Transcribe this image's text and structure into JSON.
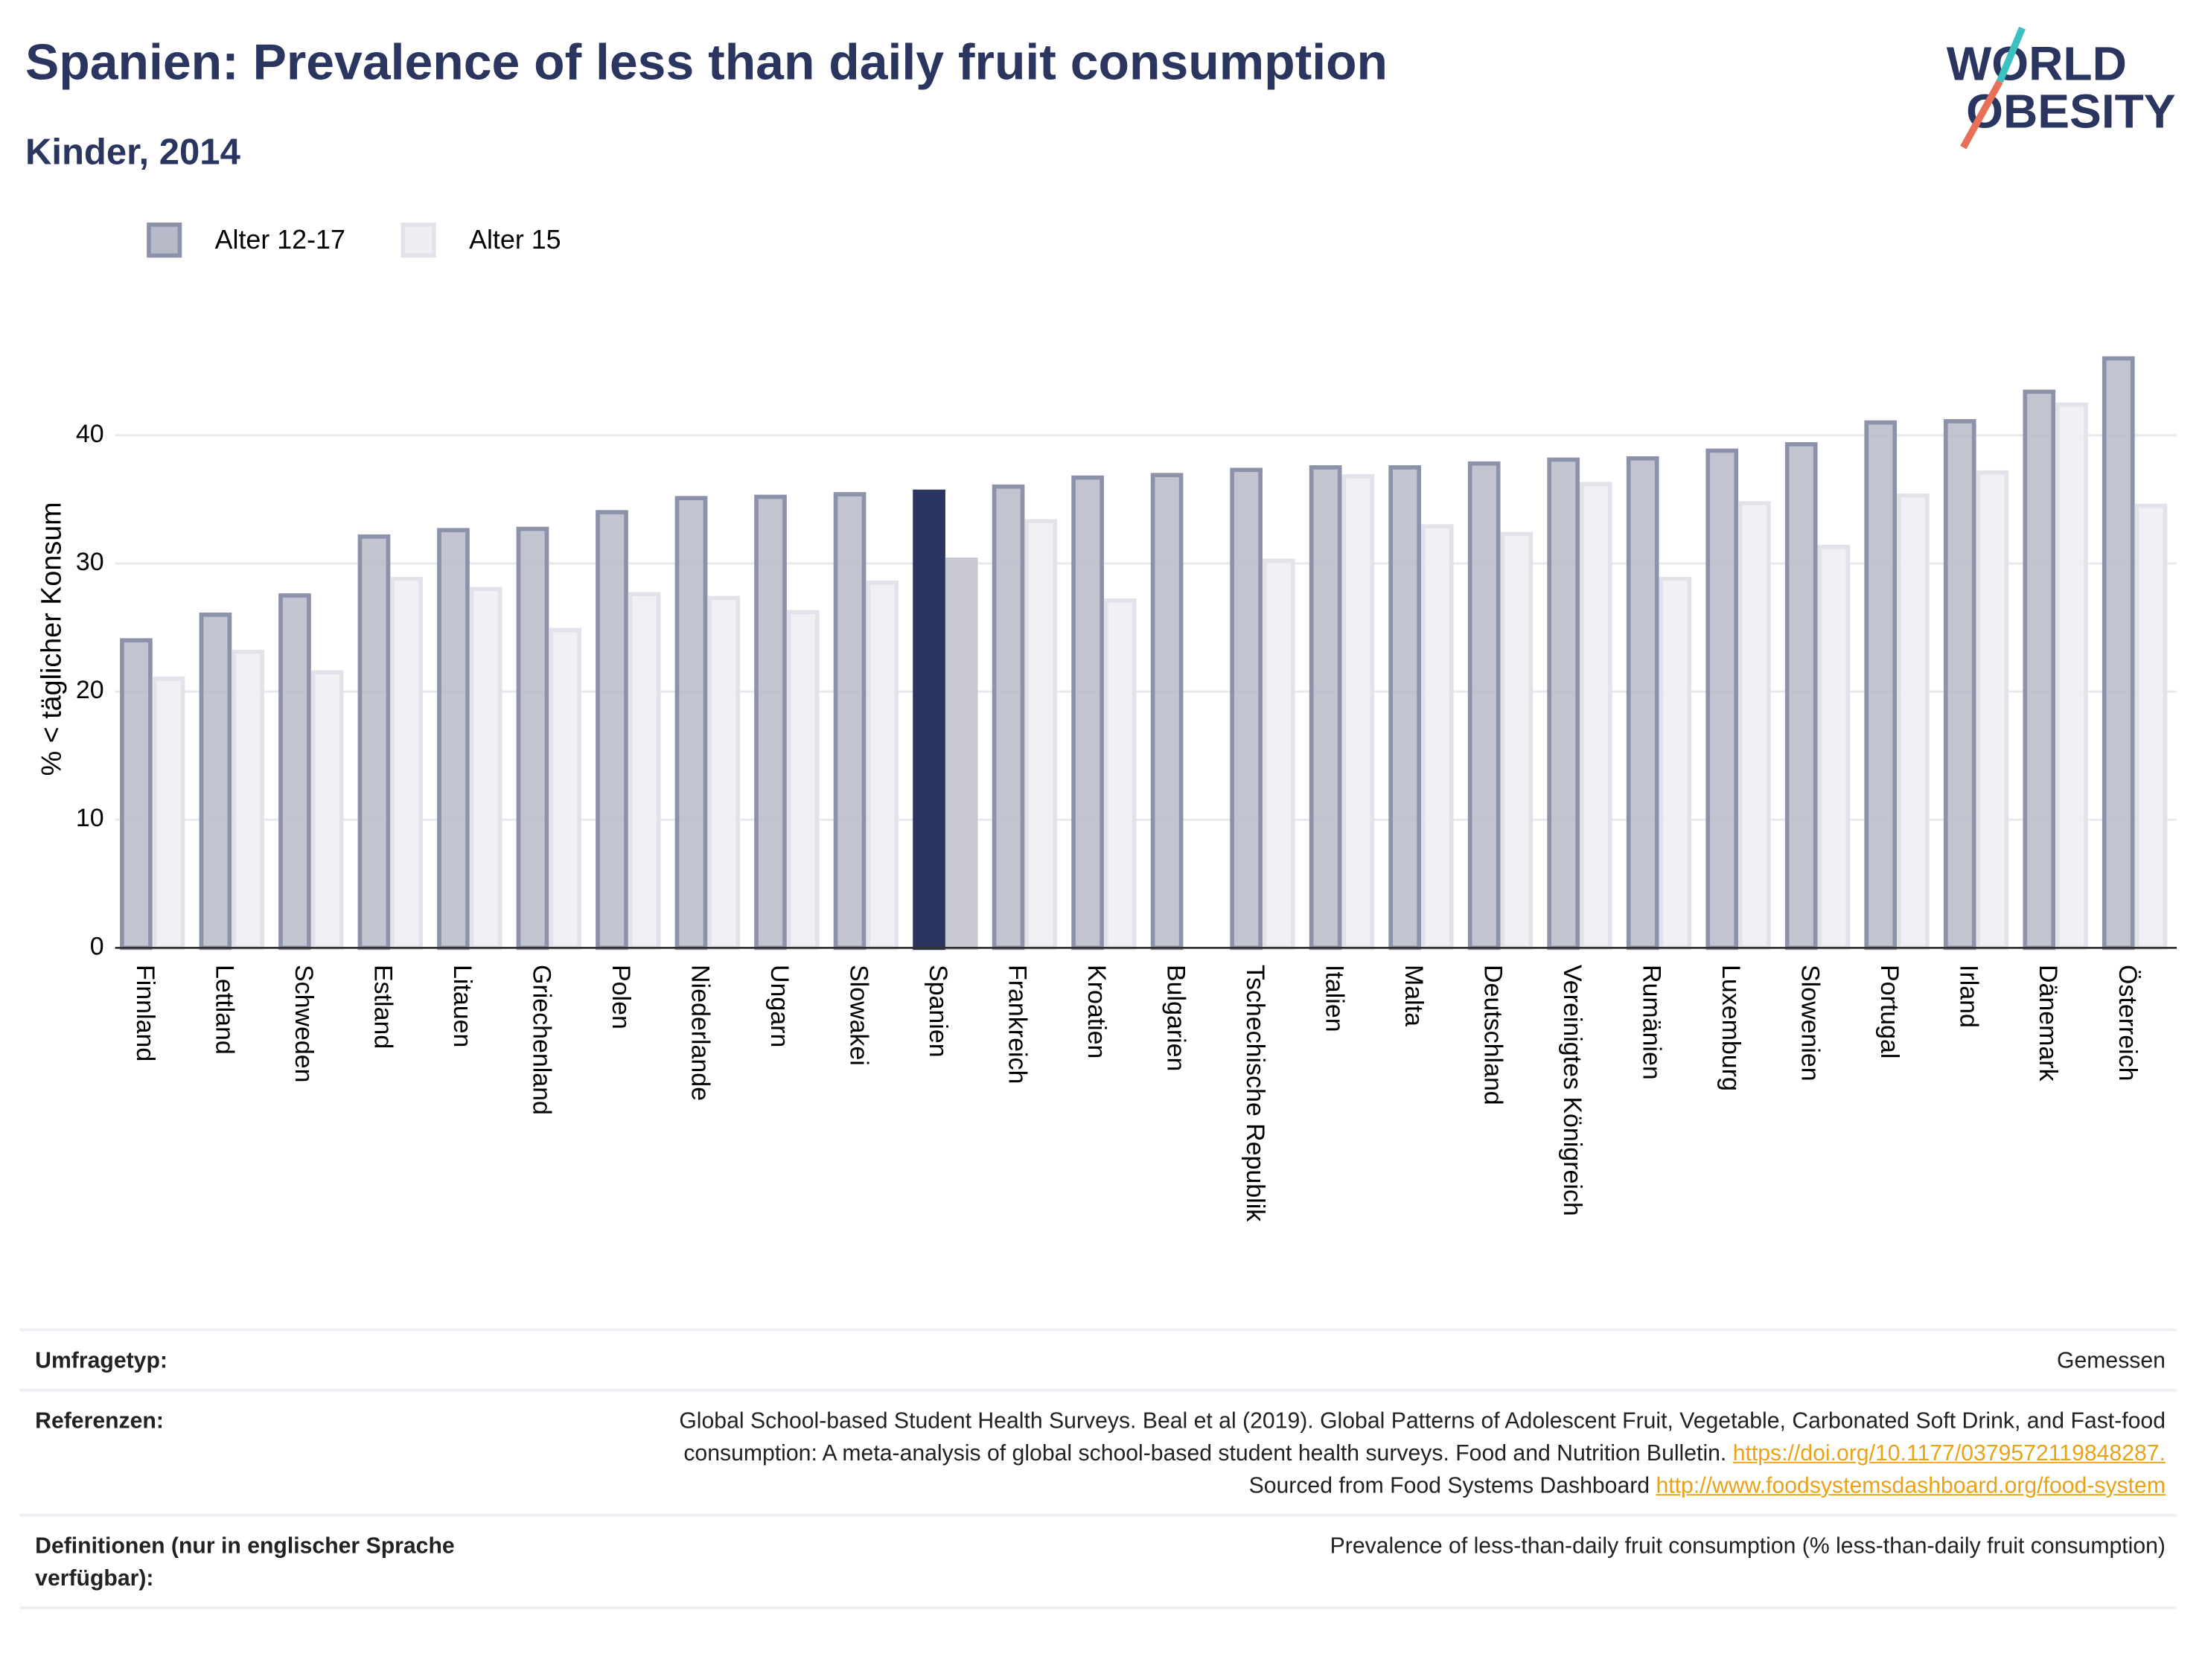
{
  "chart_data": {
    "type": "bar",
    "title": "Spanien: Prevalence of less than daily fruit consumption",
    "subtitle": "Kinder, 2014",
    "y_label": "% < täglicher Konsum",
    "categories": [
      "Finnland",
      "Lettland",
      "Schweden",
      "Estland",
      "Litauen",
      "Griechenland",
      "Polen",
      "Niederlande",
      "Ungarn",
      "Slowakei",
      "Spanien",
      "Frankreich",
      "Kroatien",
      "Bulgarien",
      "Tschechische Republik",
      "Italien",
      "Malta",
      "Deutschland",
      "Vereinigtes Königreich",
      "Rumänien",
      "Luxemburg",
      "Slowenien",
      "Portugal",
      "Irland",
      "Dänemark",
      "Österreich"
    ],
    "series": [
      {
        "name": "Alter 12-17",
        "color": "#b7bac8",
        "border": "#8c92aa",
        "highlight_color": "#2a3560",
        "values": [
          24,
          26,
          27.5,
          32.1,
          32.6,
          32.7,
          34,
          35.1,
          35.2,
          35.4,
          35.6,
          36,
          36.7,
          36.9,
          37.3,
          37.5,
          37.5,
          37.8,
          38.1,
          38.2,
          38.8,
          39.3,
          41,
          41.1,
          43.4,
          46
        ]
      },
      {
        "name": "Alter 15",
        "color": "#eeeff3",
        "border": "#e2e3ea",
        "highlight_color": "#c8c9d3",
        "values": [
          21,
          23.1,
          21.5,
          28.8,
          28,
          24.8,
          27.6,
          27.3,
          26.2,
          28.5,
          30.3,
          33.3,
          27.1,
          null,
          30.2,
          36.8,
          32.9,
          32.3,
          36.2,
          28.8,
          34.7,
          31.3,
          35.3,
          37.1,
          42.4,
          34.5
        ]
      }
    ],
    "highlight": "Spanien",
    "ylim": [
      0,
      48
    ],
    "yticks": [
      0,
      10,
      20,
      30,
      40
    ],
    "grid": true
  },
  "logo": [
    "WORLD",
    "OBESITY"
  ],
  "footer": {
    "rows": [
      {
        "label": "Umfragetyp:",
        "value": [
          "Gemessen"
        ]
      },
      {
        "label": "Referenzen:",
        "value": [
          "Global School-based Student Health Surveys. Beal et al (2019). Global Patterns of Adolescent Fruit, Vegetable, Carbonated Soft Drink, and Fast-food consumption: A meta-analysis of global school-based student health surveys. Food and Nutrition Bulletin. ",
          {
            "link": "https://doi.org/10.1177/0379572119848287."
          },
          " Sourced from Food Systems Dashboard ",
          {
            "link": "http://www.foodsystemsdashboard.org/food-system"
          }
        ]
      },
      {
        "label": "Definitionen (nur in englischer Sprache verfügbar):",
        "value": [
          "Prevalence of less-than-daily fruit consumption (% less-than-daily fruit consumption)"
        ]
      }
    ]
  }
}
